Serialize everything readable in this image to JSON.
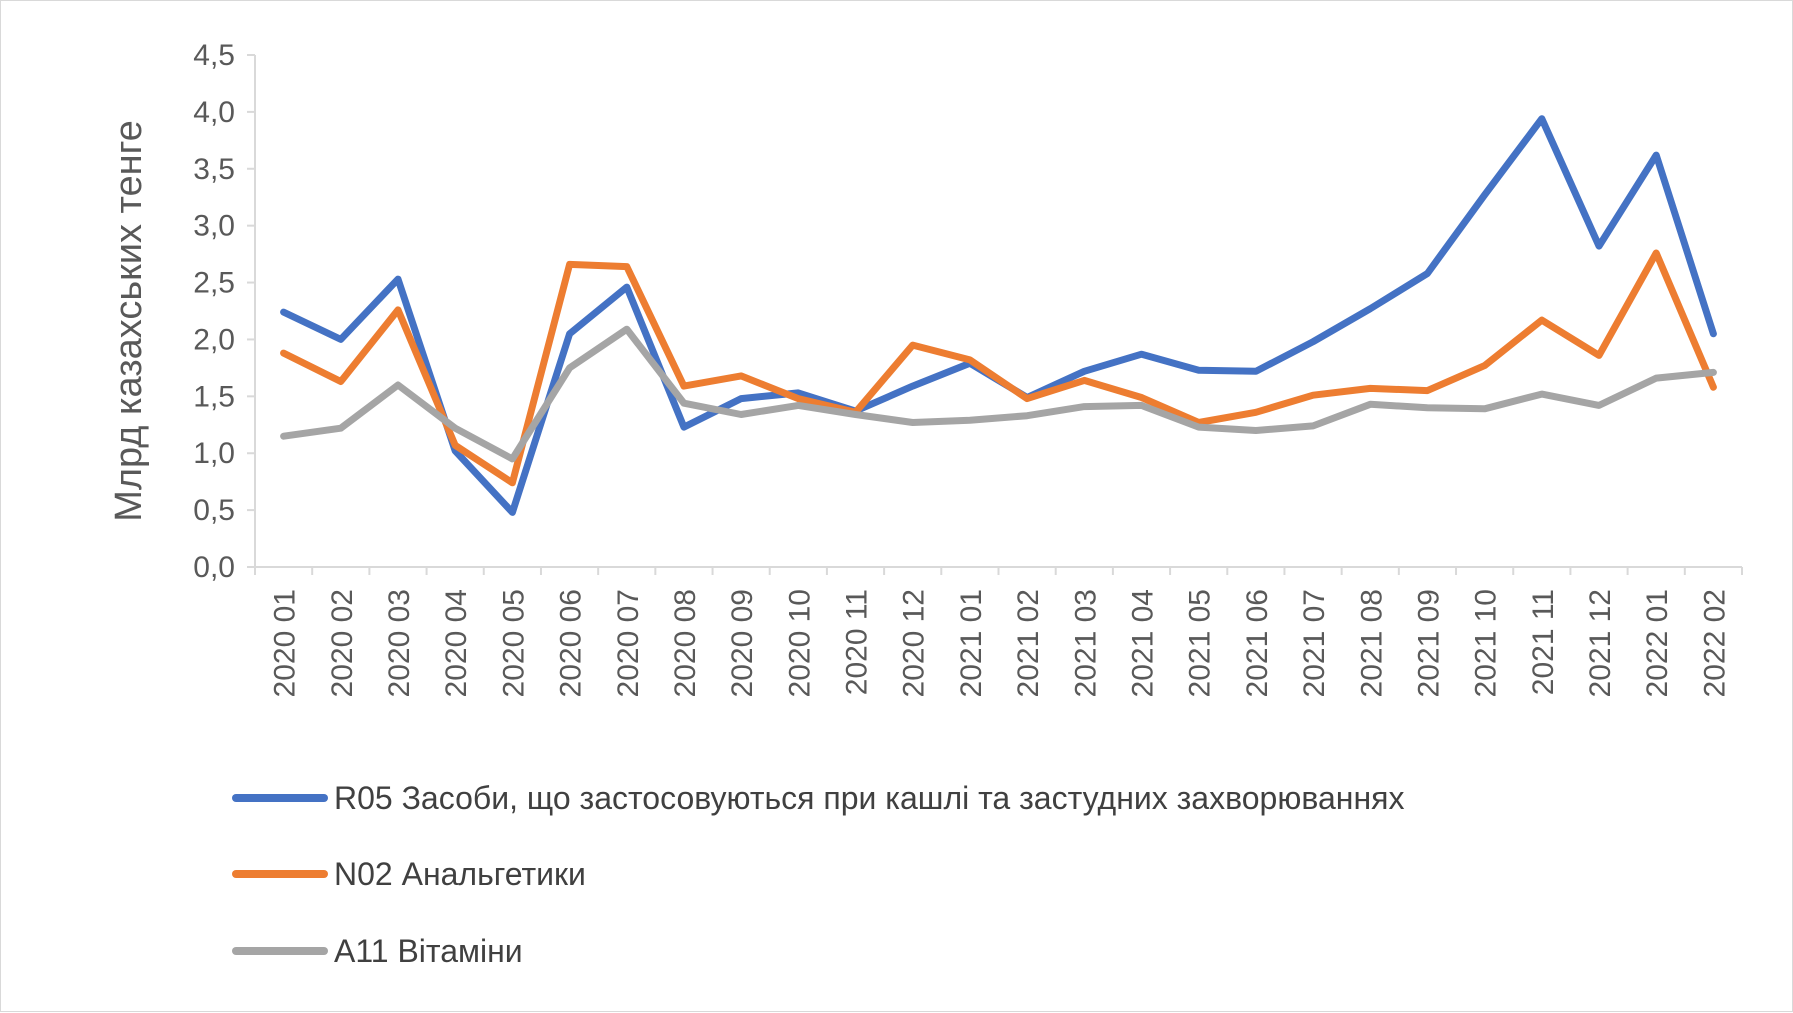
{
  "chart_data": {
    "type": "line",
    "title": "",
    "xlabel": "",
    "ylabel": "Млрд казахських тенге",
    "ylim": [
      0,
      4.5
    ],
    "yticks": [
      "0,0",
      "0,5",
      "1,0",
      "1,5",
      "2,0",
      "2,5",
      "3,0",
      "3,5",
      "4,0",
      "4,5"
    ],
    "ytick_values": [
      0,
      0.5,
      1.0,
      1.5,
      2.0,
      2.5,
      3.0,
      3.5,
      4.0,
      4.5
    ],
    "grid": false,
    "legend_position": "bottom",
    "categories": [
      "2020 01",
      "2020 02",
      "2020 03",
      "2020 04",
      "2020 05",
      "2020 06",
      "2020 07",
      "2020 08",
      "2020 09",
      "2020 10",
      "2020 11",
      "2020 12",
      "2021 01",
      "2021 02",
      "2021 03",
      "2021 04",
      "2021 05",
      "2021 06",
      "2021 07",
      "2021 08",
      "2021 09",
      "2021 10",
      "2021 11",
      "2021 12",
      "2022 01",
      "2022 02"
    ],
    "series": [
      {
        "name": "R05 Засоби, що застосовуються при кашлі та застудних захворюваннях",
        "color": "#4472C4",
        "values": [
          2.24,
          2.0,
          2.53,
          1.02,
          0.48,
          2.05,
          2.46,
          1.23,
          1.48,
          1.53,
          1.37,
          1.59,
          1.79,
          1.49,
          1.72,
          1.87,
          1.73,
          1.72,
          1.98,
          2.27,
          2.58,
          3.27,
          3.94,
          2.82,
          3.62,
          2.05
        ]
      },
      {
        "name": "N02 Анальгетики",
        "color": "#ED7D31",
        "values": [
          1.88,
          1.63,
          2.26,
          1.07,
          0.74,
          2.66,
          2.64,
          1.59,
          1.68,
          1.48,
          1.36,
          1.95,
          1.82,
          1.48,
          1.64,
          1.49,
          1.27,
          1.36,
          1.51,
          1.57,
          1.55,
          1.77,
          2.17,
          1.86,
          2.76,
          1.58
        ]
      },
      {
        "name": "A11 Вітаміни",
        "color": "#A5A5A5",
        "values": [
          1.15,
          1.22,
          1.6,
          1.22,
          0.95,
          1.75,
          2.09,
          1.44,
          1.34,
          1.42,
          1.34,
          1.27,
          1.29,
          1.33,
          1.41,
          1.42,
          1.23,
          1.2,
          1.24,
          1.43,
          1.4,
          1.39,
          1.52,
          1.42,
          1.66,
          1.71
        ]
      }
    ]
  }
}
